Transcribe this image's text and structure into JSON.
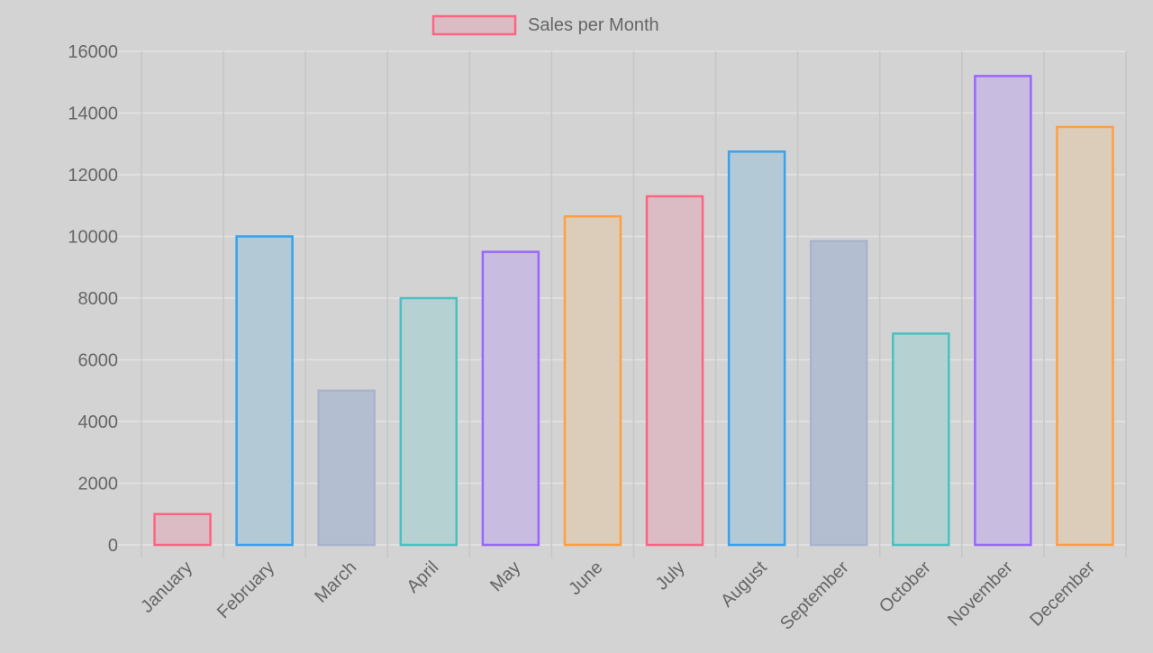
{
  "chart_data": {
    "type": "bar",
    "title": "",
    "xlabel": "",
    "ylabel": "",
    "legend": {
      "position": "top-center",
      "label": "Sales per Month"
    },
    "categories": [
      "January",
      "February",
      "March",
      "April",
      "May",
      "June",
      "July",
      "August",
      "September",
      "October",
      "November",
      "December"
    ],
    "series": [
      {
        "name": "Sales per Month",
        "values": [
          1000,
          10000,
          5000,
          8000,
          9500,
          10650,
          11300,
          12750,
          9850,
          6850,
          15200,
          13550
        ]
      }
    ],
    "ylim": [
      0,
      16000
    ],
    "yticks": [
      0,
      2000,
      4000,
      6000,
      8000,
      10000,
      12000,
      14000,
      16000
    ],
    "grid": true,
    "colors": {
      "background": "#d3d3d3",
      "grid": "#e4e4e4",
      "vertical_grid": "#c6c6c6",
      "tick_text": "#666666",
      "bar_borders": [
        "#ff6384",
        "#36a2eb",
        "#a9b4cc",
        "#4bc0c0",
        "#9966ff",
        "#ff9f40",
        "#ff6384",
        "#36a2eb",
        "#a9b4cc",
        "#4bc0c0",
        "#9966ff",
        "#ff9f40"
      ],
      "bar_fills": [
        "#dcbcc4",
        "#b3c9d6",
        "#b3bed0",
        "#b6d1d1",
        "#c8bce0",
        "#dcccba",
        "#dcbcc4",
        "#b3c9d6",
        "#b3bed0",
        "#b6d1d1",
        "#c8bce0",
        "#dcccba"
      ]
    }
  }
}
